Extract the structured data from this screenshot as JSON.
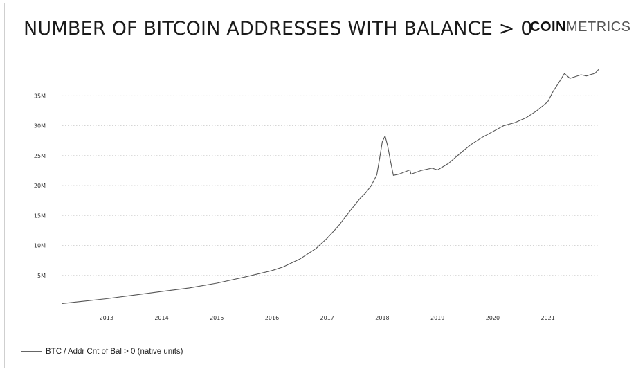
{
  "header": {
    "title": "NUMBER OF BITCOIN ADDRESSES WITH BALANCE > 0",
    "brand_bold": "COIN",
    "brand_light": "METRICS"
  },
  "chart_data": {
    "type": "line",
    "title": "NUMBER OF BITCOIN ADDRESSES WITH BALANCE > 0",
    "xlabel": "",
    "ylabel": "",
    "xlim": [
      2012.2,
      2021.92
    ],
    "ylim": [
      0,
      40000000
    ],
    "grid": true,
    "legend_position": "bottom-left",
    "line_color": "#555555",
    "x_ticks": [
      2013,
      2014,
      2015,
      2016,
      2017,
      2018,
      2019,
      2020,
      2021
    ],
    "x_tick_labels": [
      "2013",
      "2014",
      "2015",
      "2016",
      "2017",
      "2018",
      "2019",
      "2020",
      "2021"
    ],
    "y_ticks": [
      5000000,
      10000000,
      15000000,
      20000000,
      25000000,
      30000000,
      35000000
    ],
    "y_tick_labels": [
      "5M",
      "10M",
      "15M",
      "20M",
      "25M",
      "30M",
      "35M"
    ],
    "series": [
      {
        "name": "BTC / Addr Cnt of Bal > 0 (native units)",
        "x": [
          2012.2,
          2012.5,
          2013.0,
          2013.5,
          2014.0,
          2014.5,
          2015.0,
          2015.5,
          2016.0,
          2016.2,
          2016.5,
          2016.8,
          2017.0,
          2017.2,
          2017.4,
          2017.6,
          2017.7,
          2017.8,
          2017.9,
          2017.95,
          2018.0,
          2018.05,
          2018.1,
          2018.15,
          2018.2,
          2018.3,
          2018.5,
          2018.52,
          2018.7,
          2018.9,
          2019.0,
          2019.2,
          2019.4,
          2019.6,
          2019.8,
          2020.0,
          2020.2,
          2020.4,
          2020.6,
          2020.8,
          2021.0,
          2021.1,
          2021.2,
          2021.3,
          2021.35,
          2021.4,
          2021.5,
          2021.6,
          2021.7,
          2021.8,
          2021.85,
          2021.92
        ],
        "y": [
          300000,
          600000,
          1100000,
          1700000,
          2300000,
          2900000,
          3700000,
          4700000,
          5800000,
          6400000,
          7700000,
          9500000,
          11200000,
          13200000,
          15600000,
          17900000,
          18800000,
          20000000,
          21800000,
          24500000,
          27300000,
          28300000,
          26500000,
          24000000,
          21700000,
          21900000,
          22600000,
          21900000,
          22500000,
          22900000,
          22600000,
          23700000,
          25300000,
          26800000,
          28000000,
          29000000,
          30000000,
          30500000,
          31300000,
          32500000,
          34000000,
          35800000,
          37200000,
          38700000,
          38300000,
          37900000,
          38200000,
          38500000,
          38300000,
          38600000,
          38700000,
          39400000
        ]
      }
    ]
  }
}
